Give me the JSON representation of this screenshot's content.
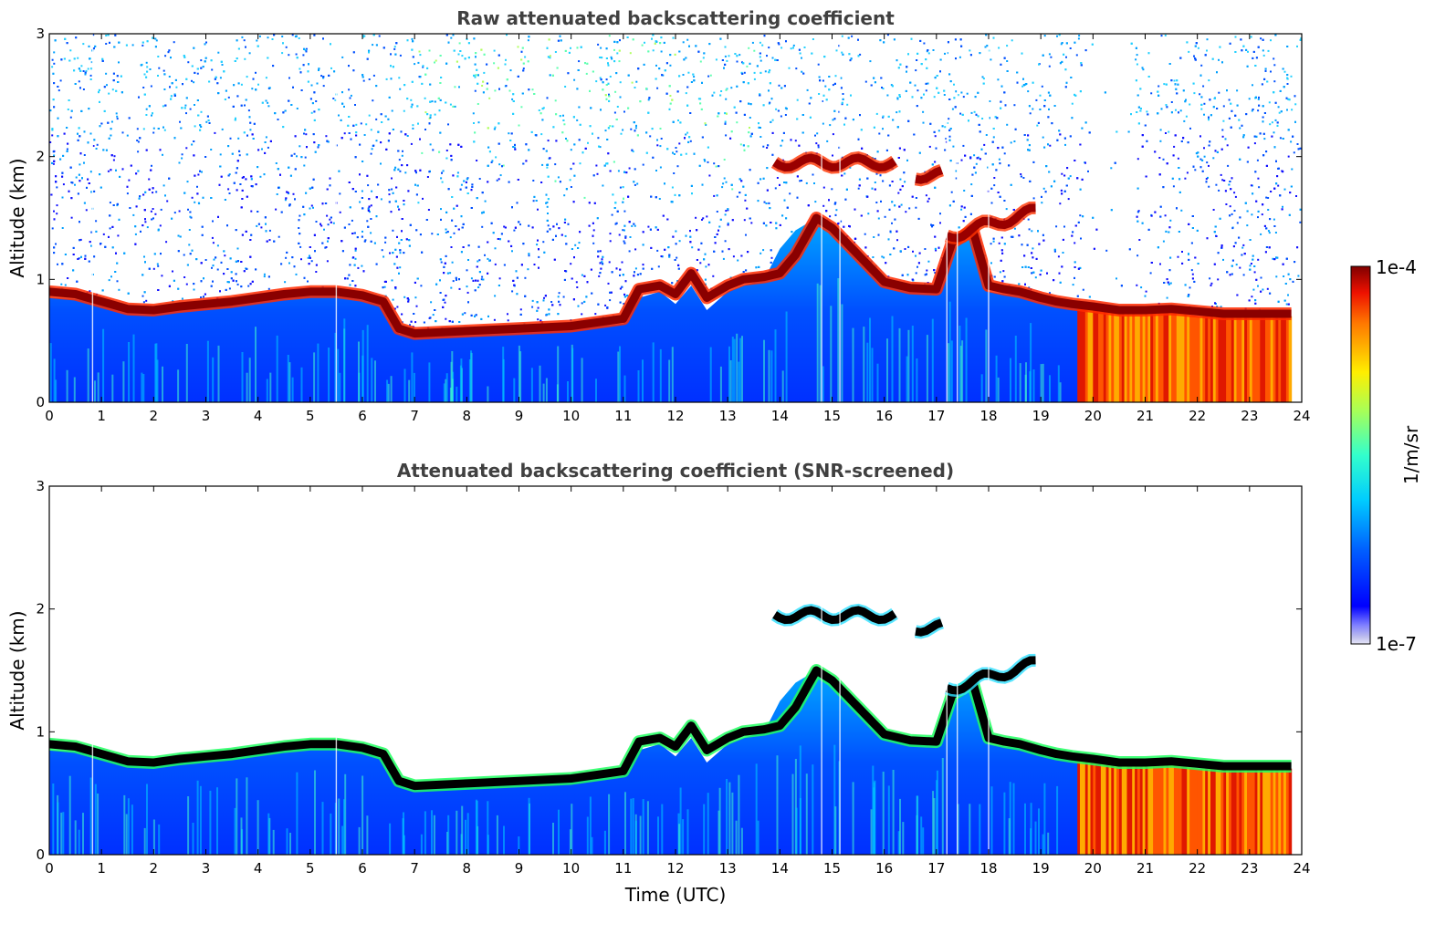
{
  "chart_data": {
    "type": "heatmap",
    "xlabel": "Time (UTC)",
    "x_ticks": [
      "0",
      "1",
      "2",
      "3",
      "4",
      "5",
      "6",
      "7",
      "8",
      "9",
      "10",
      "11",
      "12",
      "13",
      "14",
      "15",
      "16",
      "17",
      "18",
      "19",
      "20",
      "21",
      "22",
      "23",
      "24"
    ],
    "xlim": [
      0,
      24
    ],
    "colorbar": {
      "label": "1/m/sr",
      "min_label": "1e-7",
      "max_label": "1e-4",
      "scale": "log",
      "colormap": "jet"
    },
    "panels": [
      {
        "title": "Raw attenuated backscattering coefficient",
        "ylabel": "Altitude (km)",
        "y_ticks": [
          "0",
          "1",
          "2",
          "3"
        ],
        "ylim": [
          0,
          3
        ]
      },
      {
        "title": "Attenuated backscattering coefficient (SNR-screened)",
        "ylabel": "Altitude (km)",
        "y_ticks": [
          "0",
          "1",
          "2",
          "3"
        ],
        "ylim": [
          0,
          3
        ]
      }
    ],
    "layer_top_km": {
      "time_h": [
        0,
        0.5,
        1,
        1.5,
        2,
        2.5,
        3,
        3.5,
        4,
        4.5,
        5,
        5.5,
        6,
        6.4,
        6.7,
        7,
        8,
        9,
        10,
        11,
        11.3,
        11.7,
        12,
        12.3,
        12.6,
        13,
        13.3,
        13.7,
        14,
        14.3,
        14.7,
        15,
        15.5,
        16,
        16.5,
        17,
        17.3,
        17.7,
        18,
        18.3,
        18.6,
        19,
        19.3,
        19.6,
        20,
        20.5,
        21,
        21.5,
        22,
        22.5,
        23,
        23.5,
        23.8
      ],
      "cloud_km": [
        0.9,
        0.88,
        0.82,
        0.76,
        0.75,
        0.78,
        0.8,
        0.82,
        0.85,
        0.88,
        0.9,
        0.9,
        0.87,
        0.82,
        0.6,
        0.56,
        0.58,
        0.6,
        0.62,
        0.68,
        0.92,
        0.95,
        0.88,
        1.05,
        0.85,
        0.95,
        1.0,
        1.02,
        1.05,
        1.2,
        1.5,
        1.42,
        1.2,
        0.98,
        0.93,
        0.92,
        1.3,
        1.4,
        0.95,
        0.92,
        0.9,
        0.85,
        0.82,
        0.8,
        0.78,
        0.75,
        0.75,
        0.76,
        0.74,
        0.72,
        0.72,
        0.72,
        0.72
      ],
      "aerosol_km": [
        0.85,
        0.84,
        0.8,
        0.75,
        0.74,
        0.76,
        0.78,
        0.8,
        0.82,
        0.86,
        0.88,
        0.88,
        0.85,
        0.78,
        0.56,
        0.55,
        0.57,
        0.58,
        0.6,
        0.64,
        0.85,
        0.9,
        0.8,
        0.95,
        0.75,
        0.9,
        0.95,
        1.0,
        1.25,
        1.4,
        1.5,
        1.4,
        1.15,
        0.95,
        0.9,
        0.9,
        1.25,
        1.35,
        0.9,
        0.88,
        0.87,
        0.82,
        0.8,
        0.78,
        0.75,
        0.72,
        0.72,
        0.73,
        0.7,
        0.7,
        0.7,
        0.7,
        0.7
      ]
    },
    "elevated_layers": [
      {
        "start_h": 13.9,
        "end_h": 16.2,
        "km": 1.95
      },
      {
        "start_h": 16.6,
        "end_h": 17.1,
        "km": 1.85
      },
      {
        "start_h": 17.2,
        "end_h": 18.9,
        "km": 1.35
      }
    ],
    "rain_band": {
      "start_h": 19.7,
      "end_h": 23.8
    }
  }
}
